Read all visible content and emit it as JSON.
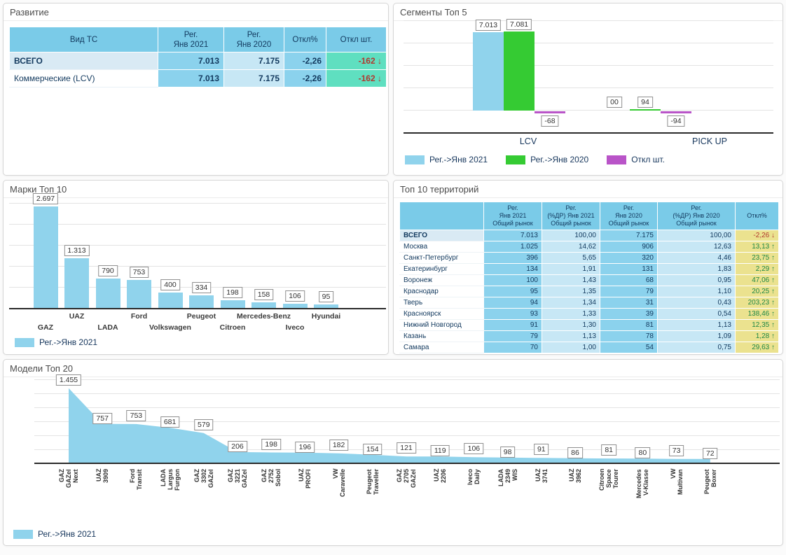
{
  "colors": {
    "series_2021": "#90d3ec",
    "series_2020": "#35cb33",
    "series_dev": "#b954c8",
    "table_header": "#7acbe8",
    "cell_strong": "#8bd2ed",
    "cell_light": "#c7e7f5",
    "cell_teal": "#5fdfc0",
    "cell_yellow": "#ebe28f",
    "positive": "#1e8745",
    "negative": "#b0392f"
  },
  "panels": {
    "development": {
      "title": "Развитие"
    },
    "segments": {
      "title": "Сегменты Топ 5"
    },
    "brands": {
      "title": "Марки Топ 10"
    },
    "territories": {
      "title": "Топ 10 территорий"
    },
    "models": {
      "title": "Модели Топ 20"
    }
  },
  "chart_data": [
    {
      "id": "development",
      "type": "table",
      "title": "Развитие",
      "columns": [
        "Вид ТС",
        "Рег.\nЯнв 2021",
        "Рег.\nЯнв 2020",
        "Откл%",
        "Откл шт."
      ],
      "rows": [
        {
          "label": "ВСЕГО",
          "bold": true,
          "reg_jan_2021": "7.013",
          "reg_jan_2020": "7.175",
          "dev_pct": "-2,26",
          "dev_units": "-162",
          "dev_dir": "down"
        },
        {
          "label": "Коммерческие (LCV)",
          "bold": false,
          "reg_jan_2021": "7.013",
          "reg_jan_2020": "7.175",
          "dev_pct": "-2,26",
          "dev_units": "-162",
          "dev_dir": "down"
        }
      ]
    },
    {
      "id": "segments",
      "type": "bar",
      "title": "Сегменты Топ 5",
      "categories": [
        "LCV",
        "PICK UP"
      ],
      "ylim": [
        -500,
        8000
      ],
      "grid": true,
      "legend_position": "bottom",
      "series": [
        {
          "name": "Рег.->Янв 2021",
          "color_key": "series_2021",
          "values": [
            7013,
            0
          ],
          "labels": [
            "7.013",
            "00"
          ]
        },
        {
          "name": "Рег.->Янв 2020",
          "color_key": "series_2020",
          "values": [
            7081,
            94
          ],
          "labels": [
            "7.081",
            "94"
          ]
        },
        {
          "name": "Откл шт.",
          "color_key": "series_dev",
          "values": [
            -68,
            -94
          ],
          "labels": [
            "-68",
            "-94"
          ]
        }
      ]
    },
    {
      "id": "brands",
      "type": "bar",
      "title": "Марки Топ 10",
      "categories": [
        "GAZ",
        "UAZ",
        "LADA",
        "Ford",
        "Volkswagen",
        "Peugeot",
        "Citroen",
        "Mercedes-Benz",
        "Iveco",
        "Hyundai"
      ],
      "ylim": [
        0,
        2800
      ],
      "grid": true,
      "legend_position": "bottom",
      "series": [
        {
          "name": "Рег.->Янв 2021",
          "color_key": "series_2021",
          "values": [
            2697,
            1313,
            790,
            753,
            400,
            334,
            198,
            158,
            106,
            95
          ],
          "labels": [
            "2.697",
            "1.313",
            "790",
            "753",
            "400",
            "334",
            "198",
            "158",
            "106",
            "95"
          ]
        }
      ]
    },
    {
      "id": "territories",
      "type": "table",
      "title": "Топ 10 территорий",
      "columns": [
        "",
        "Рег.\nЯнв 2021\nОбщий рынок",
        "Рег.\n(%ДР) Янв 2021\nОбщий рынок",
        "Рег.\nЯнв 2020\nОбщий рынок",
        "Рег.\n(%ДР) Янв 2020\nОбщий рынок",
        "Откл%"
      ],
      "rows": [
        {
          "label": "ВСЕГО",
          "bold": true,
          "reg_2021": "7.013",
          "share_2021": "100,00",
          "reg_2020": "7.175",
          "share_2020": "100,00",
          "dev_pct": "-2,26",
          "dev_dir": "down"
        },
        {
          "label": "Москва",
          "bold": false,
          "reg_2021": "1.025",
          "share_2021": "14,62",
          "reg_2020": "906",
          "share_2020": "12,63",
          "dev_pct": "13,13",
          "dev_dir": "up"
        },
        {
          "label": "Санкт-Петербург",
          "bold": false,
          "reg_2021": "396",
          "share_2021": "5,65",
          "reg_2020": "320",
          "share_2020": "4,46",
          "dev_pct": "23,75",
          "dev_dir": "up"
        },
        {
          "label": "Екатеринбург",
          "bold": false,
          "reg_2021": "134",
          "share_2021": "1,91",
          "reg_2020": "131",
          "share_2020": "1,83",
          "dev_pct": "2,29",
          "dev_dir": "up"
        },
        {
          "label": "Воронеж",
          "bold": false,
          "reg_2021": "100",
          "share_2021": "1,43",
          "reg_2020": "68",
          "share_2020": "0,95",
          "dev_pct": "47,06",
          "dev_dir": "up"
        },
        {
          "label": "Краснодар",
          "bold": false,
          "reg_2021": "95",
          "share_2021": "1,35",
          "reg_2020": "79",
          "share_2020": "1,10",
          "dev_pct": "20,25",
          "dev_dir": "up"
        },
        {
          "label": "Тверь",
          "bold": false,
          "reg_2021": "94",
          "share_2021": "1,34",
          "reg_2020": "31",
          "share_2020": "0,43",
          "dev_pct": "203,23",
          "dev_dir": "up"
        },
        {
          "label": "Красноярск",
          "bold": false,
          "reg_2021": "93",
          "share_2021": "1,33",
          "reg_2020": "39",
          "share_2020": "0,54",
          "dev_pct": "138,46",
          "dev_dir": "up"
        },
        {
          "label": "Нижний Новгород",
          "bold": false,
          "reg_2021": "91",
          "share_2021": "1,30",
          "reg_2020": "81",
          "share_2020": "1,13",
          "dev_pct": "12,35",
          "dev_dir": "up"
        },
        {
          "label": "Казань",
          "bold": false,
          "reg_2021": "79",
          "share_2021": "1,13",
          "reg_2020": "78",
          "share_2020": "1,09",
          "dev_pct": "1,28",
          "dev_dir": "up"
        },
        {
          "label": "Самара",
          "bold": false,
          "reg_2021": "70",
          "share_2021": "1,00",
          "reg_2020": "54",
          "share_2020": "0,75",
          "dev_pct": "29,63",
          "dev_dir": "up"
        }
      ]
    },
    {
      "id": "models",
      "type": "area",
      "title": "Модели Топ 20",
      "categories": [
        "GAZ\nGAZel\nNext",
        "UAZ\n3909",
        "Ford\nTransit",
        "LADA\nLargus\nFurgon",
        "GAZ\n3302\nGAZel",
        "GAZ\n3221\nGAZel",
        "GAZ\n2752\nSobol",
        "UAZ\nPROFI",
        "VW\nCaravelle",
        "Peugeot\nTraveller",
        "GAZ\n2705\nGAZel",
        "UAZ\n2206",
        "Iveco\nDaily",
        "LADA\n2349\nWIS",
        "UAZ\n3741",
        "UAZ\n3962",
        "Citroen\nSpace\nTourer",
        "Mercedes\nV-Klasse",
        "VW\nMultivan",
        "Peugeot\nBoxer"
      ],
      "ylim": [
        0,
        1600
      ],
      "grid": true,
      "legend_position": "bottom",
      "series": [
        {
          "name": "Рег.->Янв 2021",
          "color_key": "series_2021",
          "values": [
            1455,
            757,
            753,
            681,
            579,
            206,
            198,
            196,
            182,
            154,
            121,
            119,
            106,
            98,
            91,
            86,
            81,
            80,
            73,
            72
          ],
          "labels": [
            "1.455",
            "757",
            "753",
            "681",
            "579",
            "206",
            "198",
            "196",
            "182",
            "154",
            "121",
            "119",
            "106",
            "98",
            "91",
            "86",
            "81",
            "80",
            "73",
            "72"
          ]
        }
      ]
    }
  ]
}
